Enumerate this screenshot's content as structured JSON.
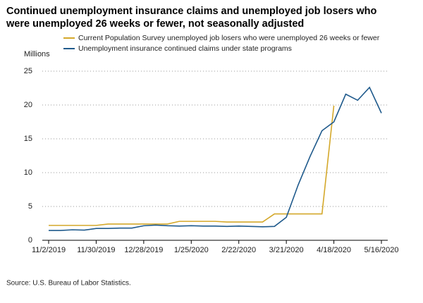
{
  "chart_data": {
    "type": "line",
    "title": "Continued unemployment insurance claims and unemployed job losers who were unemployed 26 weeks or fewer, not seasonally adjusted",
    "y_label": "Millions",
    "source": "Source: U.S. Bureau of Labor Statistics.",
    "categories": [
      "11/2/2019",
      null,
      null,
      null,
      "11/30/2019",
      null,
      null,
      null,
      "12/28/2019",
      null,
      null,
      null,
      "1/25/2020",
      null,
      null,
      null,
      "2/22/2020",
      null,
      null,
      null,
      "3/21/2020",
      null,
      null,
      null,
      "4/18/2020",
      null,
      null,
      null,
      "5/16/2020"
    ],
    "series": [
      {
        "name": "Current Population Survey unemployed job losers who were unemployed 26 weeks or fewer",
        "color": "#d4a82a",
        "values": [
          2.2,
          2.2,
          2.2,
          2.2,
          2.2,
          2.4,
          2.4,
          2.4,
          2.4,
          2.4,
          2.4,
          2.8,
          2.8,
          2.8,
          2.8,
          2.7,
          2.7,
          2.7,
          2.7,
          3.9,
          3.9,
          3.9,
          3.9,
          3.9,
          19.9,
          null,
          null,
          null,
          null
        ]
      },
      {
        "name": "Unemployment insurance continued claims under state programs",
        "color": "#1f5a8c",
        "values": [
          1.45,
          1.45,
          1.55,
          1.5,
          1.75,
          1.75,
          1.8,
          1.8,
          2.15,
          2.25,
          2.15,
          2.1,
          2.15,
          2.1,
          2.1,
          2.05,
          2.1,
          2.05,
          2.0,
          2.05,
          3.4,
          8.2,
          12.4,
          16.2,
          17.5,
          21.6,
          20.7,
          22.6,
          18.8
        ]
      }
    ],
    "ylim": [
      0,
      25
    ],
    "yticks": [
      0,
      5,
      10,
      15,
      20,
      25
    ],
    "grid": true
  }
}
